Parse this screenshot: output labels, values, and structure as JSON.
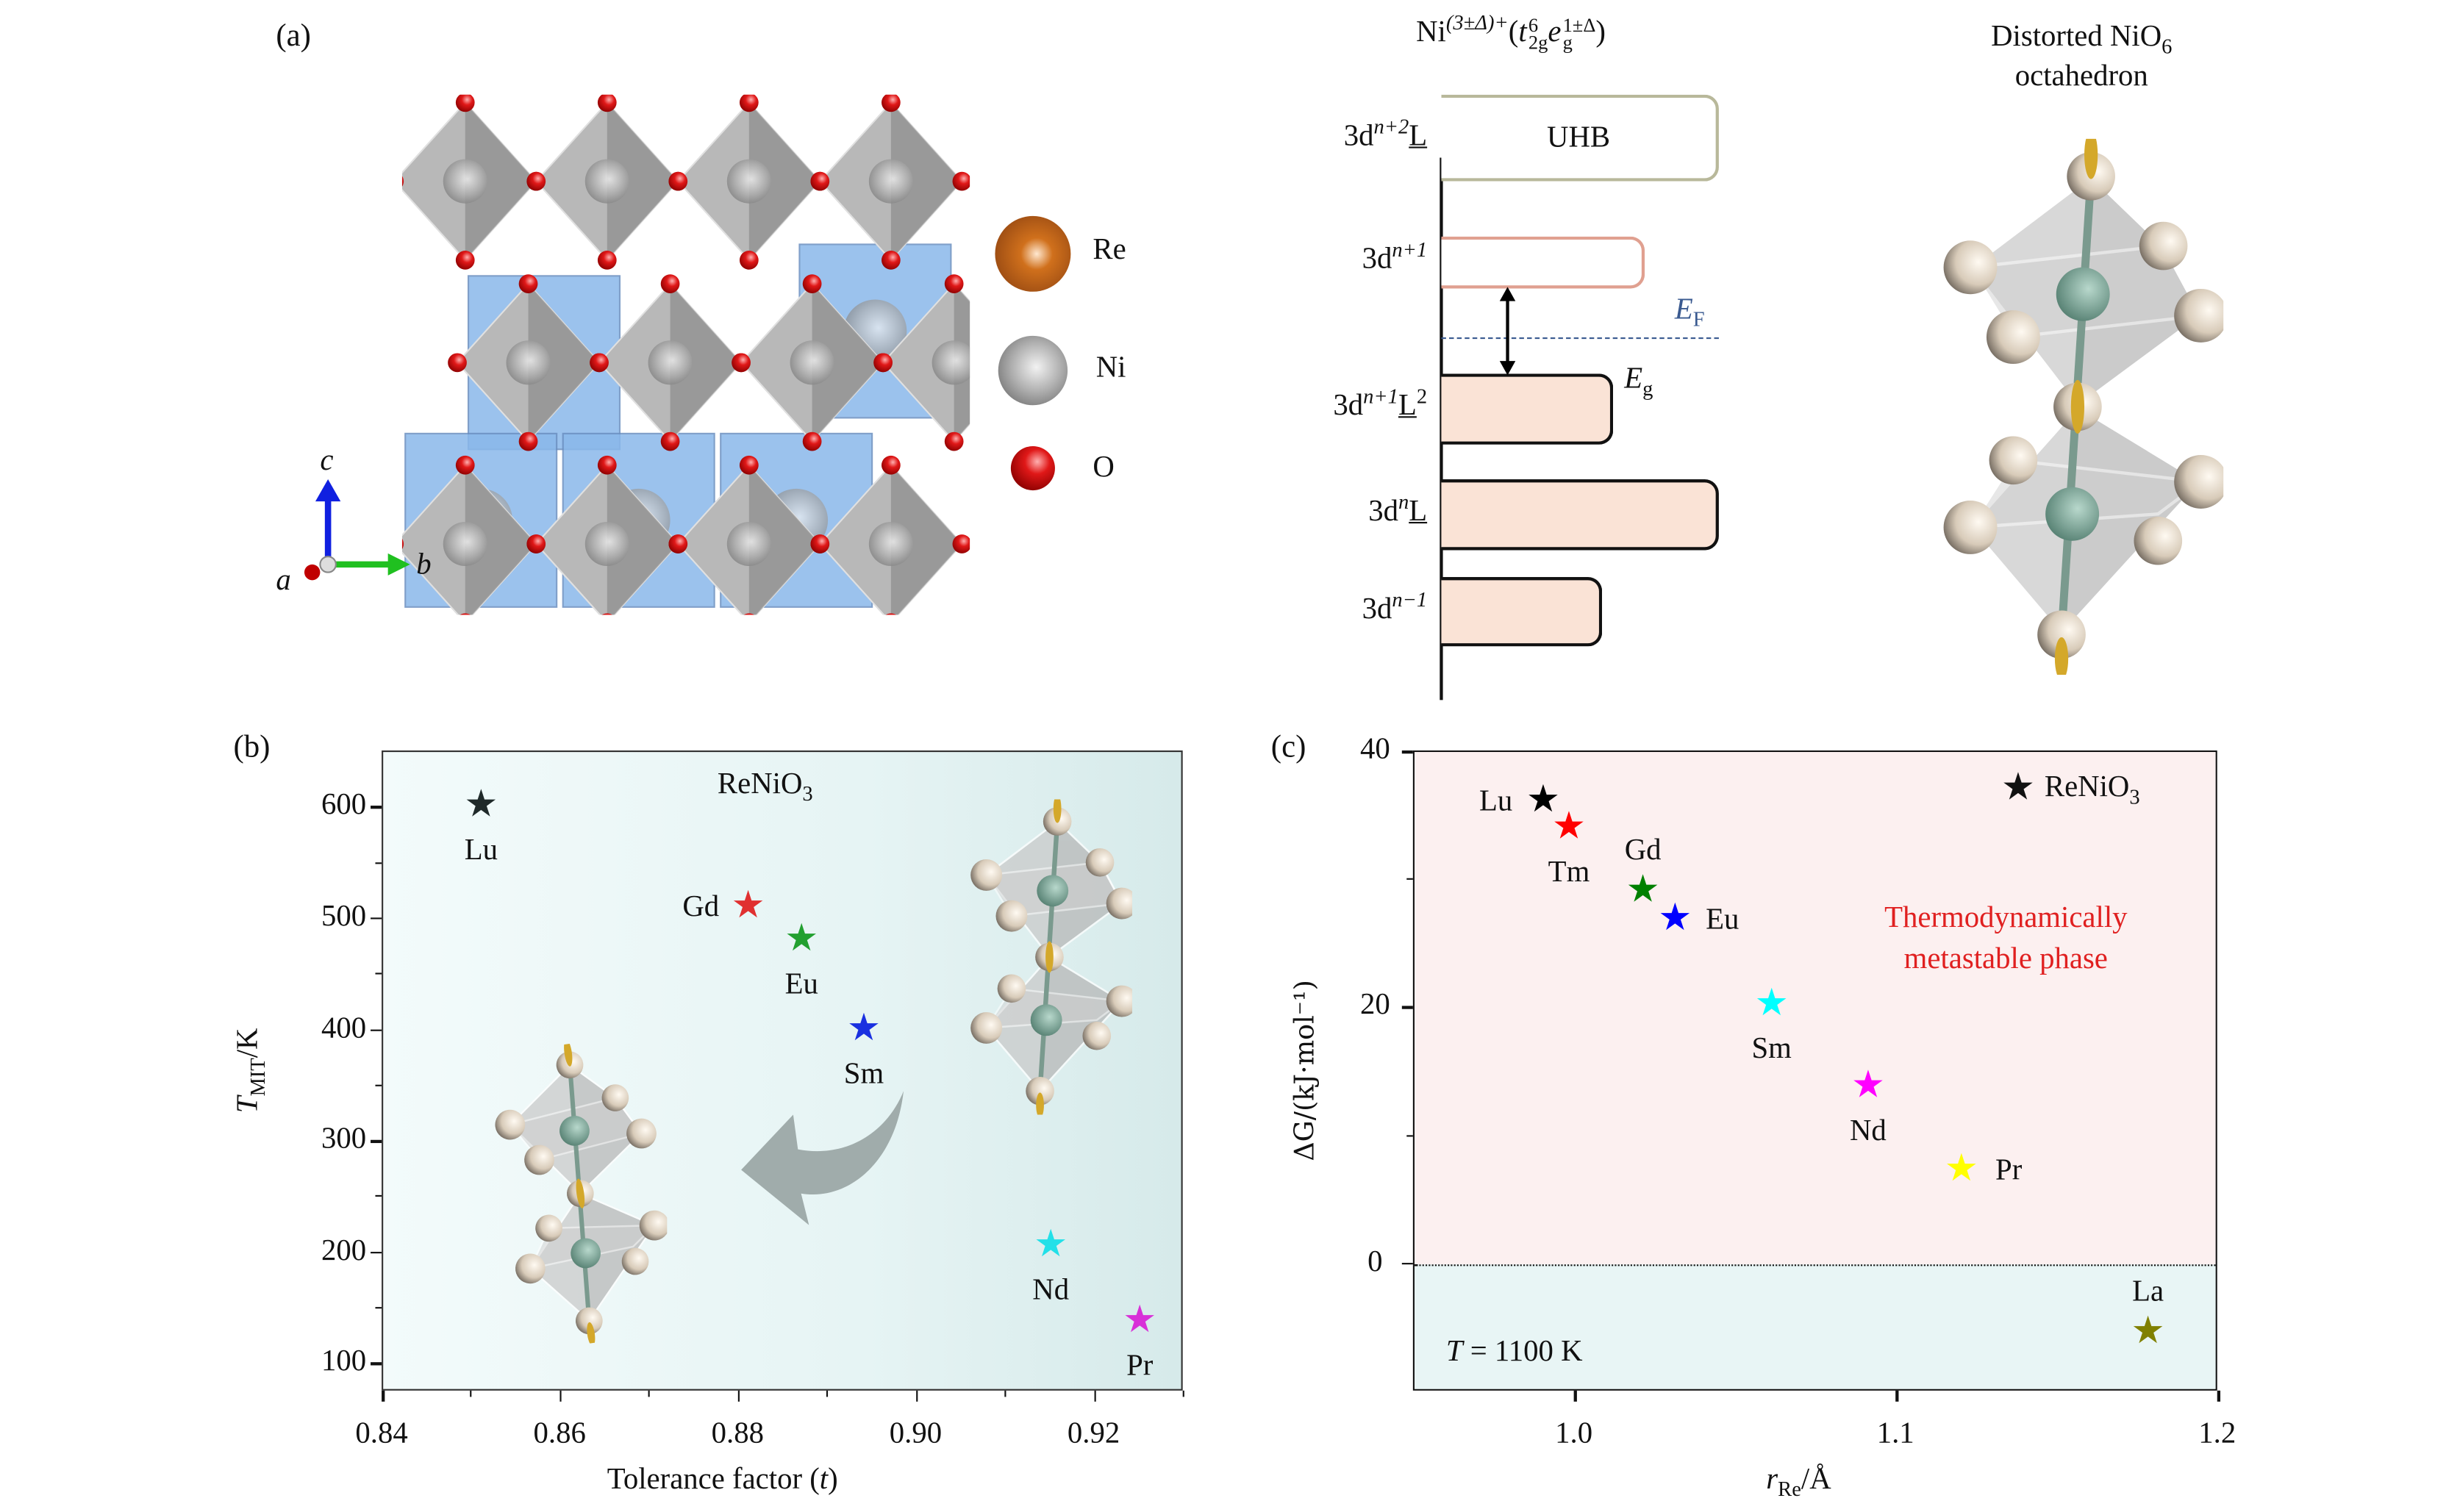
{
  "panel_a": {
    "label": "(a)",
    "legend": [
      {
        "name": "Re",
        "color": "#c0601c"
      },
      {
        "name": "Ni",
        "color": "#a8a8a8"
      },
      {
        "name": "O",
        "color": "#d81818"
      }
    ],
    "axes": {
      "c": "c",
      "b": "b",
      "a": "a"
    },
    "diagram": {
      "title_base": "Ni",
      "title_sup": "(3±Δ)+",
      "title_t": "t",
      "title_t_sup": "6",
      "title_t_sub": "2g",
      "title_e": "e",
      "title_e_sup": "1±Δ",
      "title_e_sub": "g",
      "levels": [
        {
          "base": "3d",
          "sup": "n+2",
          "ul": "L",
          "ulsup": "",
          "box_text": "UHB"
        },
        {
          "base": "3d",
          "sup": "n+1",
          "ul": "",
          "ulsup": "",
          "box_text": ""
        },
        {
          "base": "3d",
          "sup": "n+1",
          "ul": "L",
          "ulsup": "2",
          "box_text": ""
        },
        {
          "base": "3d",
          "sup": "n",
          "ul": "L",
          "ulsup": "",
          "box_text": ""
        },
        {
          "base": "3d",
          "sup": "n−1",
          "ul": "",
          "ulsup": "",
          "box_text": ""
        }
      ],
      "ef_label": "E",
      "ef_sub": "F",
      "eg_label": "E",
      "eg_sub": "g"
    },
    "octahedron_title_1": "Distorted NiO",
    "octahedron_title_sub": "6",
    "octahedron_title_2": "octahedron"
  },
  "chart_data": [
    {
      "panel": "(b)",
      "type": "scatter",
      "title": "ReNiO3",
      "title_base": "ReNiO",
      "title_sub": "3",
      "xlabel": "Tolerance factor (t)",
      "xlabel_text": "Tolerance factor (",
      "xlabel_var": "t",
      "ylabel_var": "T",
      "ylabel_sub": "MIT",
      "ylabel_unit": "/K",
      "xlim": [
        0.84,
        0.93
      ],
      "ylim": [
        75,
        650
      ],
      "xticks": [
        "0.84",
        "0.86",
        "0.88",
        "0.90",
        "0.92"
      ],
      "yticks": [
        "100",
        "200",
        "300",
        "400",
        "500",
        "600"
      ],
      "points": [
        {
          "label": "Lu",
          "x": 0.851,
          "y": 600,
          "color": "#1f2a2a",
          "pos": "below"
        },
        {
          "label": "Gd",
          "x": 0.881,
          "y": 510,
          "color": "#e03030",
          "pos": "left"
        },
        {
          "label": "Eu",
          "x": 0.887,
          "y": 480,
          "color": "#22a030",
          "pos": "below"
        },
        {
          "label": "Sm",
          "x": 0.894,
          "y": 400,
          "color": "#1a30e0",
          "pos": "below"
        },
        {
          "label": "Nd",
          "x": 0.915,
          "y": 205,
          "color": "#22e0e8",
          "pos": "below"
        },
        {
          "label": "Pr",
          "x": 0.925,
          "y": 137,
          "color": "#d830d8",
          "pos": "below"
        }
      ]
    },
    {
      "panel": "(c)",
      "type": "scatter",
      "legend": "ReNiO3",
      "legend_base": "ReNiO",
      "legend_sub": "3",
      "legend_position": "top-right",
      "annotation_1": "Thermodynamically",
      "annotation_2": "metastable phase",
      "annotation_color": "#e02020",
      "temp_var": "T",
      "temp_text": " = 1100 K",
      "xlabel_var": "r",
      "xlabel_sub": "Re",
      "xlabel_unit": "/Å",
      "ylabel": "ΔG/(kJ·mol⁻¹)",
      "xlim": [
        0.95,
        1.2
      ],
      "ylim": [
        -10,
        40
      ],
      "xticks": [
        "1.0",
        "1.1",
        "1.2"
      ],
      "yticks": [
        "0",
        "20",
        "40"
      ],
      "zero_line": 0,
      "region_colors": {
        "metastable": "#fcf0f0",
        "stable": "#e8f5f5"
      },
      "points": [
        {
          "label": "Lu",
          "x": 0.99,
          "y": 36.0,
          "color": "#000000",
          "pos": "left"
        },
        {
          "label": "Tm",
          "x": 0.998,
          "y": 34.0,
          "color": "#ff0000",
          "pos": "below"
        },
        {
          "label": "Gd",
          "x": 1.021,
          "y": 29.0,
          "color": "#008000",
          "pos": "above"
        },
        {
          "label": "Eu",
          "x": 1.031,
          "y": 26.8,
          "color": "#0000ff",
          "pos": "right"
        },
        {
          "label": "Sm",
          "x": 1.061,
          "y": 20.2,
          "color": "#00ffff",
          "pos": "below"
        },
        {
          "label": "Nd",
          "x": 1.091,
          "y": 13.8,
          "color": "#ff00ff",
          "pos": "below"
        },
        {
          "label": "Pr",
          "x": 1.12,
          "y": 7.3,
          "color": "#ffff00",
          "pos": "right"
        },
        {
          "label": "La",
          "x": 1.178,
          "y": -5.5,
          "color": "#808000",
          "pos": "above"
        }
      ]
    }
  ]
}
